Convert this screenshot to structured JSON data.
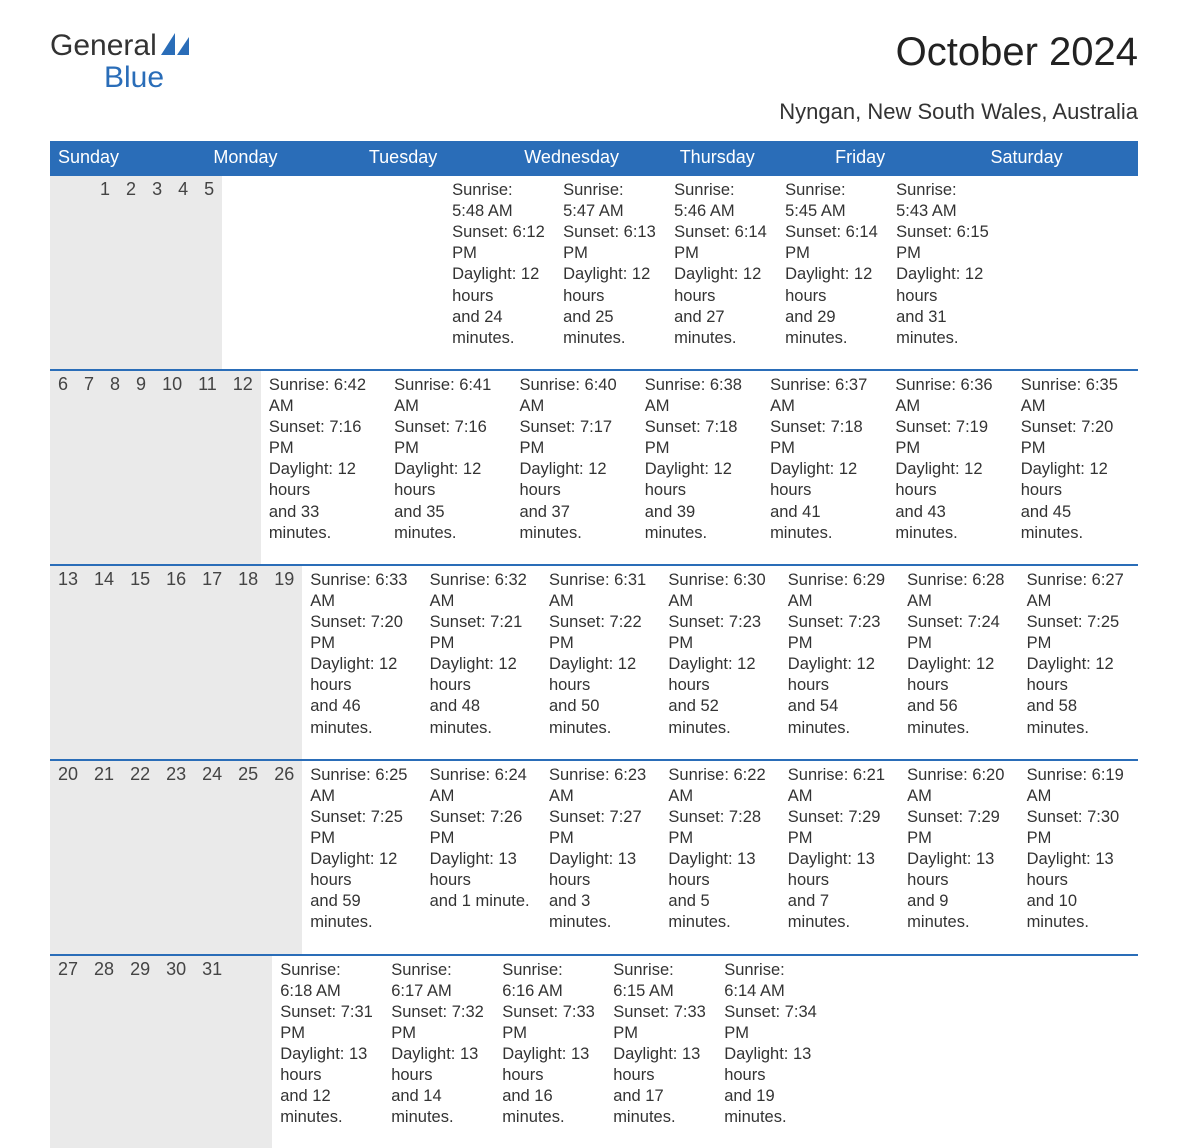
{
  "logo": {
    "word1": "General",
    "word2": "Blue"
  },
  "title": "October 2024",
  "subtitle": "Nyngan, New South Wales, Australia",
  "colors": {
    "accent": "#2a6db8",
    "header_bg": "#2a6db8",
    "daynum_bg": "#eaeaea",
    "text": "#333333",
    "bg": "#ffffff"
  },
  "typography": {
    "title_fontsize": 40,
    "subtitle_fontsize": 22,
    "header_fontsize": 18,
    "body_fontsize": 16.5
  },
  "days_of_week": [
    "Sunday",
    "Monday",
    "Tuesday",
    "Wednesday",
    "Thursday",
    "Friday",
    "Saturday"
  ],
  "weeks": [
    [
      null,
      null,
      {
        "n": "1",
        "sr": "Sunrise: 5:48 AM",
        "ss": "Sunset: 6:12 PM",
        "dl1": "Daylight: 12 hours",
        "dl2": "and 24 minutes."
      },
      {
        "n": "2",
        "sr": "Sunrise: 5:47 AM",
        "ss": "Sunset: 6:13 PM",
        "dl1": "Daylight: 12 hours",
        "dl2": "and 25 minutes."
      },
      {
        "n": "3",
        "sr": "Sunrise: 5:46 AM",
        "ss": "Sunset: 6:14 PM",
        "dl1": "Daylight: 12 hours",
        "dl2": "and 27 minutes."
      },
      {
        "n": "4",
        "sr": "Sunrise: 5:45 AM",
        "ss": "Sunset: 6:14 PM",
        "dl1": "Daylight: 12 hours",
        "dl2": "and 29 minutes."
      },
      {
        "n": "5",
        "sr": "Sunrise: 5:43 AM",
        "ss": "Sunset: 6:15 PM",
        "dl1": "Daylight: 12 hours",
        "dl2": "and 31 minutes."
      }
    ],
    [
      {
        "n": "6",
        "sr": "Sunrise: 6:42 AM",
        "ss": "Sunset: 7:16 PM",
        "dl1": "Daylight: 12 hours",
        "dl2": "and 33 minutes."
      },
      {
        "n": "7",
        "sr": "Sunrise: 6:41 AM",
        "ss": "Sunset: 7:16 PM",
        "dl1": "Daylight: 12 hours",
        "dl2": "and 35 minutes."
      },
      {
        "n": "8",
        "sr": "Sunrise: 6:40 AM",
        "ss": "Sunset: 7:17 PM",
        "dl1": "Daylight: 12 hours",
        "dl2": "and 37 minutes."
      },
      {
        "n": "9",
        "sr": "Sunrise: 6:38 AM",
        "ss": "Sunset: 7:18 PM",
        "dl1": "Daylight: 12 hours",
        "dl2": "and 39 minutes."
      },
      {
        "n": "10",
        "sr": "Sunrise: 6:37 AM",
        "ss": "Sunset: 7:18 PM",
        "dl1": "Daylight: 12 hours",
        "dl2": "and 41 minutes."
      },
      {
        "n": "11",
        "sr": "Sunrise: 6:36 AM",
        "ss": "Sunset: 7:19 PM",
        "dl1": "Daylight: 12 hours",
        "dl2": "and 43 minutes."
      },
      {
        "n": "12",
        "sr": "Sunrise: 6:35 AM",
        "ss": "Sunset: 7:20 PM",
        "dl1": "Daylight: 12 hours",
        "dl2": "and 45 minutes."
      }
    ],
    [
      {
        "n": "13",
        "sr": "Sunrise: 6:33 AM",
        "ss": "Sunset: 7:20 PM",
        "dl1": "Daylight: 12 hours",
        "dl2": "and 46 minutes."
      },
      {
        "n": "14",
        "sr": "Sunrise: 6:32 AM",
        "ss": "Sunset: 7:21 PM",
        "dl1": "Daylight: 12 hours",
        "dl2": "and 48 minutes."
      },
      {
        "n": "15",
        "sr": "Sunrise: 6:31 AM",
        "ss": "Sunset: 7:22 PM",
        "dl1": "Daylight: 12 hours",
        "dl2": "and 50 minutes."
      },
      {
        "n": "16",
        "sr": "Sunrise: 6:30 AM",
        "ss": "Sunset: 7:23 PM",
        "dl1": "Daylight: 12 hours",
        "dl2": "and 52 minutes."
      },
      {
        "n": "17",
        "sr": "Sunrise: 6:29 AM",
        "ss": "Sunset: 7:23 PM",
        "dl1": "Daylight: 12 hours",
        "dl2": "and 54 minutes."
      },
      {
        "n": "18",
        "sr": "Sunrise: 6:28 AM",
        "ss": "Sunset: 7:24 PM",
        "dl1": "Daylight: 12 hours",
        "dl2": "and 56 minutes."
      },
      {
        "n": "19",
        "sr": "Sunrise: 6:27 AM",
        "ss": "Sunset: 7:25 PM",
        "dl1": "Daylight: 12 hours",
        "dl2": "and 58 minutes."
      }
    ],
    [
      {
        "n": "20",
        "sr": "Sunrise: 6:25 AM",
        "ss": "Sunset: 7:25 PM",
        "dl1": "Daylight: 12 hours",
        "dl2": "and 59 minutes."
      },
      {
        "n": "21",
        "sr": "Sunrise: 6:24 AM",
        "ss": "Sunset: 7:26 PM",
        "dl1": "Daylight: 13 hours",
        "dl2": "and 1 minute."
      },
      {
        "n": "22",
        "sr": "Sunrise: 6:23 AM",
        "ss": "Sunset: 7:27 PM",
        "dl1": "Daylight: 13 hours",
        "dl2": "and 3 minutes."
      },
      {
        "n": "23",
        "sr": "Sunrise: 6:22 AM",
        "ss": "Sunset: 7:28 PM",
        "dl1": "Daylight: 13 hours",
        "dl2": "and 5 minutes."
      },
      {
        "n": "24",
        "sr": "Sunrise: 6:21 AM",
        "ss": "Sunset: 7:29 PM",
        "dl1": "Daylight: 13 hours",
        "dl2": "and 7 minutes."
      },
      {
        "n": "25",
        "sr": "Sunrise: 6:20 AM",
        "ss": "Sunset: 7:29 PM",
        "dl1": "Daylight: 13 hours",
        "dl2": "and 9 minutes."
      },
      {
        "n": "26",
        "sr": "Sunrise: 6:19 AM",
        "ss": "Sunset: 7:30 PM",
        "dl1": "Daylight: 13 hours",
        "dl2": "and 10 minutes."
      }
    ],
    [
      {
        "n": "27",
        "sr": "Sunrise: 6:18 AM",
        "ss": "Sunset: 7:31 PM",
        "dl1": "Daylight: 13 hours",
        "dl2": "and 12 minutes."
      },
      {
        "n": "28",
        "sr": "Sunrise: 6:17 AM",
        "ss": "Sunset: 7:32 PM",
        "dl1": "Daylight: 13 hours",
        "dl2": "and 14 minutes."
      },
      {
        "n": "29",
        "sr": "Sunrise: 6:16 AM",
        "ss": "Sunset: 7:33 PM",
        "dl1": "Daylight: 13 hours",
        "dl2": "and 16 minutes."
      },
      {
        "n": "30",
        "sr": "Sunrise: 6:15 AM",
        "ss": "Sunset: 7:33 PM",
        "dl1": "Daylight: 13 hours",
        "dl2": "and 17 minutes."
      },
      {
        "n": "31",
        "sr": "Sunrise: 6:14 AM",
        "ss": "Sunset: 7:34 PM",
        "dl1": "Daylight: 13 hours",
        "dl2": "and 19 minutes."
      },
      null,
      null
    ]
  ]
}
